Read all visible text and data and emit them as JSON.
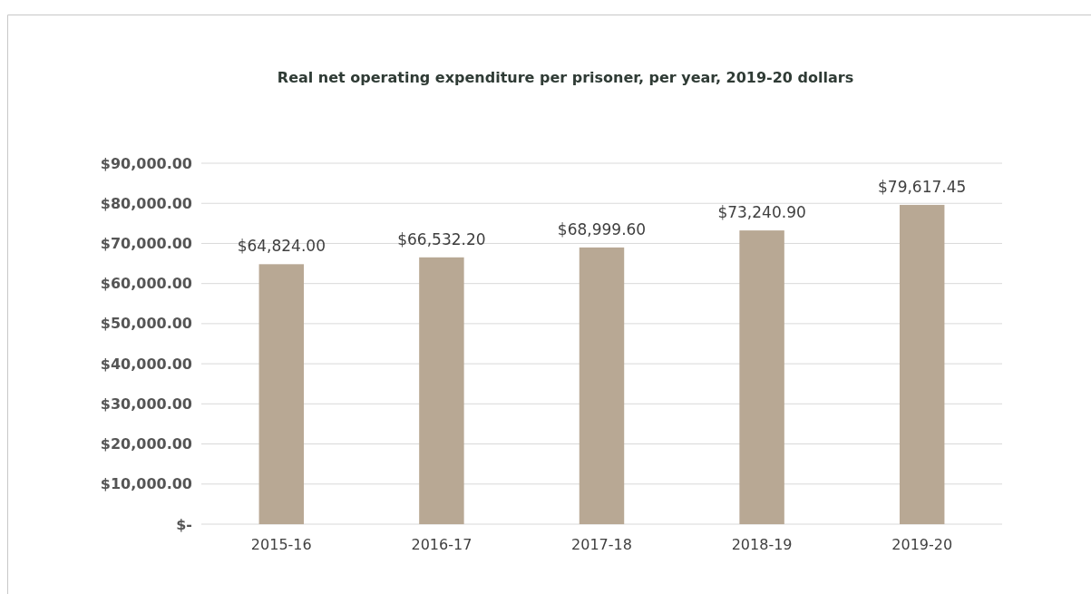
{
  "chart_data": {
    "type": "bar",
    "title": "Real net operating expenditure per prisoner, per year, 2019-20 dollars",
    "categories": [
      "2015-16",
      "2016-17",
      "2017-18",
      "2018-19",
      "2019-20"
    ],
    "values": [
      64824.0,
      66532.2,
      68999.6,
      73240.9,
      79617.45
    ],
    "value_labels": [
      "$64,824.00",
      "$66,532.20",
      "$68,999.60",
      "$73,240.90",
      "$79,617.45"
    ],
    "color": "#b8a894",
    "ylim": [
      0,
      90000
    ],
    "yticks": [
      {
        "value": 0,
        "label": "$-"
      },
      {
        "value": 10000,
        "label": "$10,000.00"
      },
      {
        "value": 20000,
        "label": "$20,000.00"
      },
      {
        "value": 30000,
        "label": "$30,000.00"
      },
      {
        "value": 40000,
        "label": "$40,000.00"
      },
      {
        "value": 50000,
        "label": "$50,000.00"
      },
      {
        "value": 60000,
        "label": "$60,000.00"
      },
      {
        "value": 70000,
        "label": "$70,000.00"
      },
      {
        "value": 80000,
        "label": "$80,000.00"
      },
      {
        "value": 90000,
        "label": "$90,000.00"
      }
    ],
    "grid": "y"
  }
}
